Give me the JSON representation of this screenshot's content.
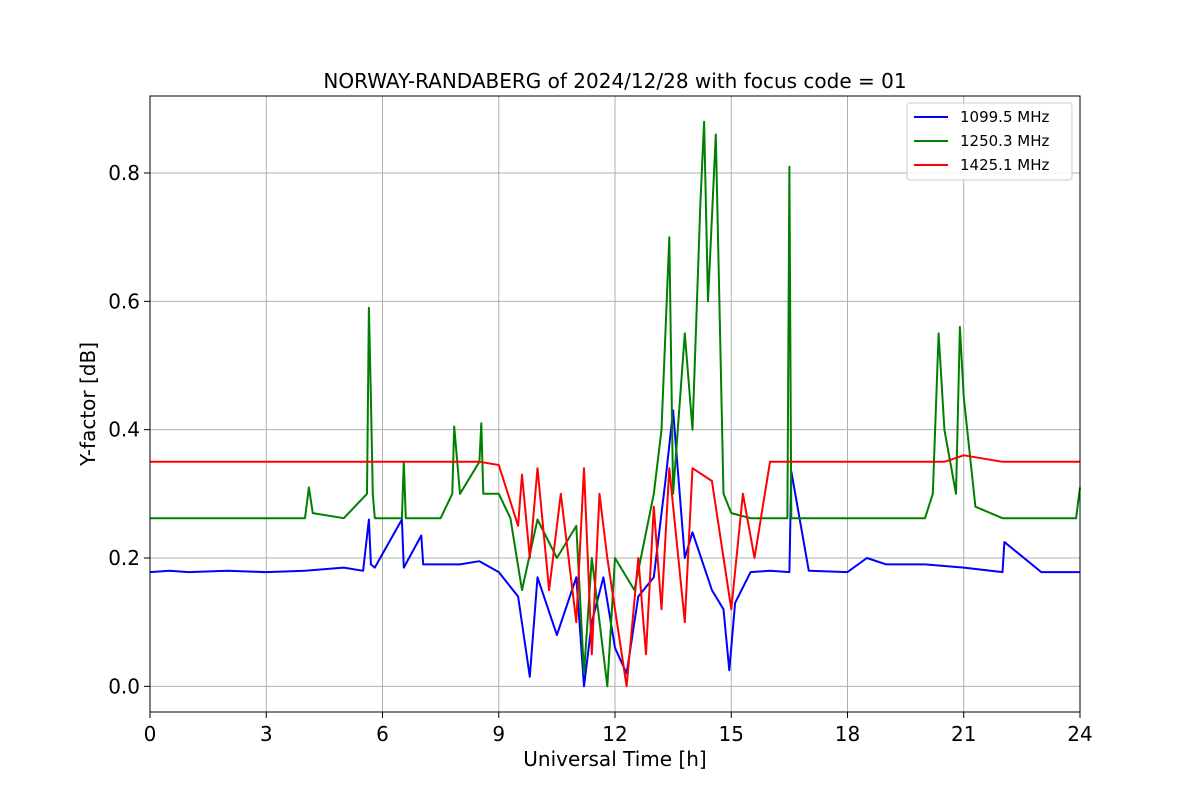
{
  "chart_data": {
    "type": "line",
    "title": "NORWAY-RANDABERG of 2024/12/28 with focus code = 01",
    "xlabel": "Universal Time [h]",
    "ylabel": "Y-factor [dB]",
    "xlim": [
      0,
      24
    ],
    "ylim": [
      -0.04,
      0.92
    ],
    "xticks": [
      0,
      3,
      6,
      9,
      12,
      15,
      18,
      21,
      24
    ],
    "xtick_labels": [
      "0",
      "3",
      "6",
      "9",
      "12",
      "15",
      "18",
      "21",
      "24"
    ],
    "yticks": [
      0.0,
      0.2,
      0.4,
      0.6,
      0.8
    ],
    "ytick_labels": [
      "0.0",
      "0.2",
      "0.4",
      "0.6",
      "0.8"
    ],
    "grid": true,
    "legend_position": "top-right",
    "series": [
      {
        "name": "1099.5 MHz",
        "color": "#0000ff",
        "x": [
          0,
          0.5,
          1,
          2,
          3,
          4,
          5,
          5.5,
          5.65,
          5.7,
          5.8,
          6.5,
          6.55,
          7,
          7.05,
          8,
          8.5,
          9,
          9.5,
          9.8,
          10,
          10.5,
          11,
          11.2,
          11.4,
          11.7,
          12,
          12.3,
          12.6,
          13,
          13.3,
          13.5,
          13.8,
          14,
          14.5,
          14.8,
          14.95,
          15.1,
          15.5,
          16,
          16.5,
          16.55,
          17,
          18,
          18.5,
          19,
          20,
          21,
          22,
          22.05,
          23,
          24
        ],
        "y": [
          0.178,
          0.18,
          0.178,
          0.18,
          0.178,
          0.18,
          0.185,
          0.18,
          0.26,
          0.19,
          0.185,
          0.26,
          0.185,
          0.235,
          0.19,
          0.19,
          0.195,
          0.178,
          0.14,
          0.015,
          0.17,
          0.08,
          0.17,
          0.0,
          0.1,
          0.17,
          0.06,
          0.02,
          0.14,
          0.17,
          0.32,
          0.43,
          0.2,
          0.24,
          0.15,
          0.12,
          0.025,
          0.13,
          0.178,
          0.18,
          0.178,
          0.335,
          0.18,
          0.178,
          0.2,
          0.19,
          0.19,
          0.185,
          0.178,
          0.225,
          0.178,
          0.178
        ]
      },
      {
        "name": "1250.3 MHz",
        "color": "#008000",
        "x": [
          0,
          1,
          2,
          3,
          4,
          4.1,
          4.2,
          5,
          5.6,
          5.65,
          5.7,
          5.75,
          5.8,
          6.5,
          6.55,
          6.6,
          7.5,
          7.8,
          7.85,
          8,
          8.5,
          8.55,
          8.6,
          9,
          9.3,
          9.6,
          10,
          10.5,
          11,
          11.2,
          11.4,
          11.8,
          12,
          12.5,
          13,
          13.2,
          13.4,
          13.5,
          13.8,
          14,
          14.2,
          14.3,
          14.4,
          14.6,
          14.8,
          15,
          15.5,
          16,
          16.45,
          16.5,
          16.55,
          17,
          18,
          19,
          20,
          20.2,
          20.35,
          20.5,
          20.8,
          20.9,
          21,
          21.3,
          22,
          23,
          23.9,
          24
        ],
        "y": [
          0.262,
          0.262,
          0.262,
          0.262,
          0.262,
          0.31,
          0.27,
          0.262,
          0.3,
          0.59,
          0.45,
          0.3,
          0.262,
          0.262,
          0.35,
          0.262,
          0.262,
          0.3,
          0.405,
          0.3,
          0.35,
          0.41,
          0.3,
          0.3,
          0.262,
          0.15,
          0.26,
          0.2,
          0.25,
          0.02,
          0.2,
          0.0,
          0.2,
          0.15,
          0.3,
          0.4,
          0.7,
          0.3,
          0.55,
          0.4,
          0.75,
          0.88,
          0.6,
          0.86,
          0.3,
          0.27,
          0.262,
          0.262,
          0.262,
          0.81,
          0.262,
          0.262,
          0.262,
          0.262,
          0.262,
          0.3,
          0.55,
          0.4,
          0.3,
          0.56,
          0.45,
          0.28,
          0.262,
          0.262,
          0.262,
          0.31
        ]
      },
      {
        "name": "1425.1 MHz",
        "color": "#ff0000",
        "x": [
          0,
          1,
          2,
          3,
          4,
          5,
          6,
          7,
          8,
          8.5,
          9,
          9.5,
          9.6,
          9.8,
          10,
          10.3,
          10.6,
          11,
          11.2,
          11.4,
          11.6,
          11.8,
          12,
          12.3,
          12.6,
          12.8,
          13,
          13.2,
          13.4,
          13.8,
          14,
          14.5,
          15,
          15.3,
          15.6,
          16,
          17,
          18,
          19,
          20,
          20.5,
          21,
          22,
          23,
          24
        ],
        "y": [
          0.35,
          0.35,
          0.35,
          0.35,
          0.35,
          0.35,
          0.35,
          0.35,
          0.35,
          0.35,
          0.345,
          0.25,
          0.33,
          0.2,
          0.34,
          0.15,
          0.3,
          0.1,
          0.34,
          0.05,
          0.3,
          0.2,
          0.12,
          0.0,
          0.2,
          0.05,
          0.28,
          0.12,
          0.34,
          0.1,
          0.34,
          0.32,
          0.12,
          0.3,
          0.2,
          0.35,
          0.35,
          0.35,
          0.35,
          0.35,
          0.35,
          0.36,
          0.35,
          0.35,
          0.35
        ]
      }
    ]
  }
}
